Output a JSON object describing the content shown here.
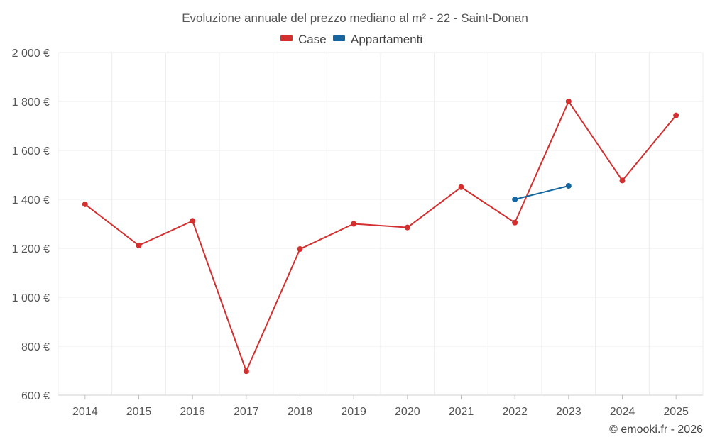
{
  "chart_data": {
    "type": "line",
    "title": "Evoluzione annuale del prezzo mediano al m² - 22 - Saint-Donan",
    "categories": [
      "2014",
      "2015",
      "2016",
      "2017",
      "2018",
      "2019",
      "2020",
      "2021",
      "2022",
      "2023",
      "2024",
      "2025"
    ],
    "y_tick_labels": [
      "600 €",
      "800 €",
      "1 000 €",
      "1 200 €",
      "1 400 €",
      "1 600 €",
      "1 800 €",
      "2 000 €"
    ],
    "y_ticks": [
      600,
      800,
      1000,
      1200,
      1400,
      1600,
      1800,
      2000
    ],
    "ylim": [
      600,
      2000
    ],
    "grid": true,
    "legend_position": "top-center",
    "series": [
      {
        "name": "Case",
        "color": "#d32f2f",
        "values": [
          1380,
          1212,
          1312,
          698,
          1197,
          1300,
          1285,
          1450,
          1305,
          1800,
          1477,
          1743
        ]
      },
      {
        "name": "Appartamenti",
        "color": "#1565a0",
        "values": [
          null,
          null,
          null,
          null,
          null,
          null,
          null,
          null,
          1400,
          1455,
          null,
          null
        ]
      }
    ],
    "credit": "© emooki.fr - 2026"
  }
}
